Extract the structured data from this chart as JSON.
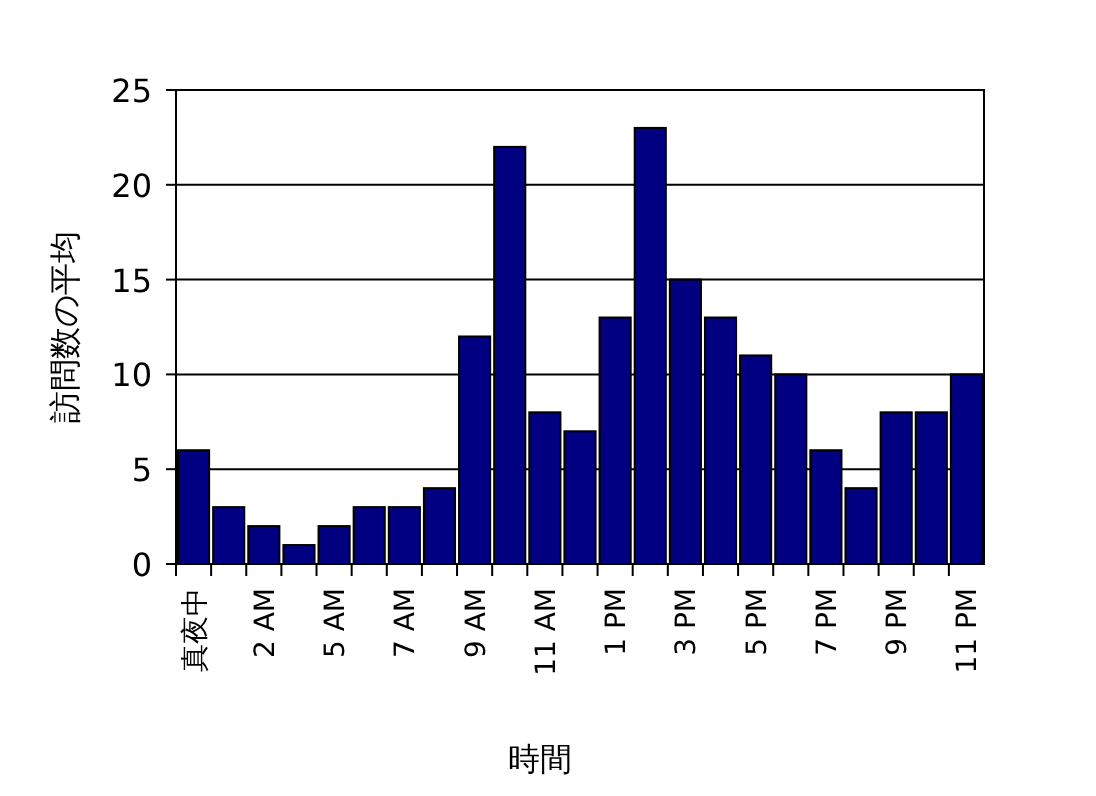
{
  "chart_data": {
    "type": "bar",
    "xlabel": "時間",
    "ylabel": "訪問数の平均",
    "categories": [
      "真夜中",
      null,
      "2 AM",
      null,
      "5 AM",
      null,
      "7 AM",
      null,
      "9 AM",
      null,
      "11 AM",
      null,
      "1 PM",
      null,
      "3 PM",
      null,
      "5 PM",
      null,
      "7 PM",
      null,
      "9 PM",
      null,
      "11 PM"
    ],
    "values": [
      6,
      3,
      2,
      1,
      2,
      3,
      3,
      4,
      12,
      22,
      8,
      7,
      13,
      23,
      15,
      13,
      11,
      10,
      6,
      4,
      8,
      8,
      10
    ],
    "color": "#000080",
    "ylim": [
      0,
      25
    ],
    "yticks": [
      0,
      5,
      10,
      15,
      20,
      25
    ],
    "grid": "y"
  }
}
